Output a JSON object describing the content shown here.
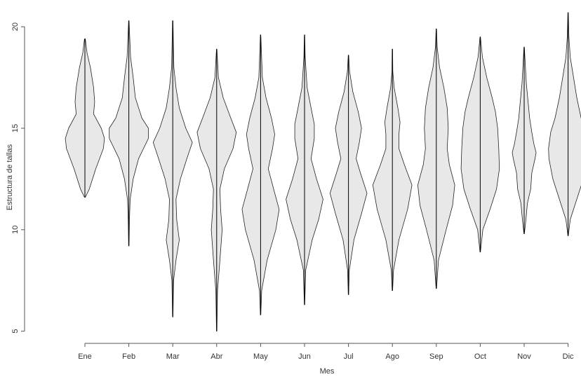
{
  "chart_data": {
    "type": "violin",
    "x_label": "Mes",
    "y_label": "Estructura de tallas",
    "categories": [
      "Ene",
      "Feb",
      "Mar",
      "Abr",
      "May",
      "Jun",
      "Jul",
      "Ago",
      "Sep",
      "Oct",
      "Nov",
      "Dic"
    ],
    "ylim": [
      4.4,
      20.8
    ],
    "yticks": [
      5,
      10,
      15,
      20
    ],
    "color": "#e8e8e8",
    "violins": [
      {
        "y": [
          11.6,
          12,
          13,
          14,
          14.5,
          15,
          15.7,
          16.3,
          17,
          18,
          18.7,
          19.4
        ],
        "density": [
          0.02,
          0.2,
          0.5,
          0.85,
          0.9,
          0.75,
          0.4,
          0.45,
          0.4,
          0.25,
          0.1,
          0.02
        ]
      },
      {
        "y": [
          9.2,
          10.5,
          11.5,
          12.5,
          13.5,
          14.5,
          15,
          15.5,
          16.5,
          17.5,
          18.5,
          20.3
        ],
        "density": [
          0.01,
          0.03,
          0.06,
          0.2,
          0.45,
          0.9,
          0.9,
          0.6,
          0.3,
          0.2,
          0.08,
          0.01
        ]
      },
      {
        "y": [
          5.7,
          7.5,
          8.5,
          9.5,
          10.5,
          11.5,
          12.5,
          13.5,
          14.3,
          15,
          16,
          17,
          18,
          20.3
        ],
        "density": [
          0.01,
          0.04,
          0.15,
          0.3,
          0.18,
          0.15,
          0.35,
          0.65,
          0.9,
          0.6,
          0.3,
          0.15,
          0.05,
          0.01
        ]
      },
      {
        "y": [
          5,
          7,
          8.5,
          10,
          11,
          12,
          13,
          14,
          14.8,
          15.5,
          16.5,
          17.5,
          18.9
        ],
        "density": [
          0.01,
          0.04,
          0.15,
          0.25,
          0.18,
          0.15,
          0.35,
          0.75,
          0.9,
          0.65,
          0.3,
          0.08,
          0.01
        ]
      },
      {
        "y": [
          5.8,
          7,
          8.5,
          10,
          11,
          12,
          13,
          14,
          14.7,
          15.5,
          16.5,
          17.5,
          19.6
        ],
        "density": [
          0.01,
          0.05,
          0.3,
          0.7,
          0.85,
          0.6,
          0.35,
          0.55,
          0.65,
          0.5,
          0.25,
          0.08,
          0.01
        ]
      },
      {
        "y": [
          6.3,
          8,
          9.5,
          10.5,
          11.5,
          12.5,
          13.5,
          14.5,
          15.2,
          16,
          17,
          18.5,
          19.6
        ],
        "density": [
          0.01,
          0.05,
          0.35,
          0.65,
          0.85,
          0.55,
          0.3,
          0.45,
          0.45,
          0.3,
          0.12,
          0.03,
          0.01
        ]
      },
      {
        "y": [
          6.8,
          8,
          9.5,
          10.8,
          11.8,
          12.8,
          13.5,
          14.3,
          15,
          15.8,
          16.8,
          17.8,
          18.6
        ],
        "density": [
          0.01,
          0.04,
          0.25,
          0.6,
          0.85,
          0.55,
          0.35,
          0.5,
          0.6,
          0.45,
          0.2,
          0.05,
          0.01
        ]
      },
      {
        "y": [
          7,
          8,
          9.5,
          11,
          12.2,
          13.2,
          14,
          14.7,
          15.3,
          16,
          17,
          17.8,
          18.9
        ],
        "density": [
          0.01,
          0.05,
          0.3,
          0.7,
          0.9,
          0.55,
          0.3,
          0.3,
          0.35,
          0.25,
          0.08,
          0.02,
          0.01
        ]
      },
      {
        "y": [
          7.1,
          8.5,
          10,
          11.2,
          12.2,
          13.2,
          14,
          15,
          16,
          17,
          18,
          19,
          19.9
        ],
        "density": [
          0.01,
          0.1,
          0.45,
          0.75,
          0.85,
          0.6,
          0.5,
          0.55,
          0.5,
          0.35,
          0.15,
          0.04,
          0.01
        ]
      },
      {
        "y": [
          8.9,
          10,
          11,
          12,
          13,
          14,
          15,
          15.8,
          16.5,
          17.5,
          18.5,
          19.5
        ],
        "density": [
          0.01,
          0.12,
          0.45,
          0.75,
          0.88,
          0.85,
          0.8,
          0.7,
          0.55,
          0.3,
          0.1,
          0.01
        ]
      },
      {
        "y": [
          9.8,
          10.5,
          11.3,
          12,
          12.8,
          13.5,
          13.8,
          14.2,
          14.8,
          15.5,
          16.3,
          17.2,
          18.2,
          19
        ],
        "density": [
          0.01,
          0.08,
          0.15,
          0.3,
          0.35,
          0.5,
          0.55,
          0.45,
          0.35,
          0.25,
          0.18,
          0.1,
          0.05,
          0.01
        ]
      },
      {
        "y": [
          9.7,
          10.5,
          11.5,
          12.5,
          13.5,
          14,
          14.8,
          15.5,
          16.5,
          17.5,
          18.5,
          19.5,
          20.7
        ],
        "density": [
          0.01,
          0.1,
          0.4,
          0.7,
          0.88,
          0.9,
          0.8,
          0.6,
          0.4,
          0.25,
          0.1,
          0.04,
          0.01
        ]
      }
    ]
  }
}
